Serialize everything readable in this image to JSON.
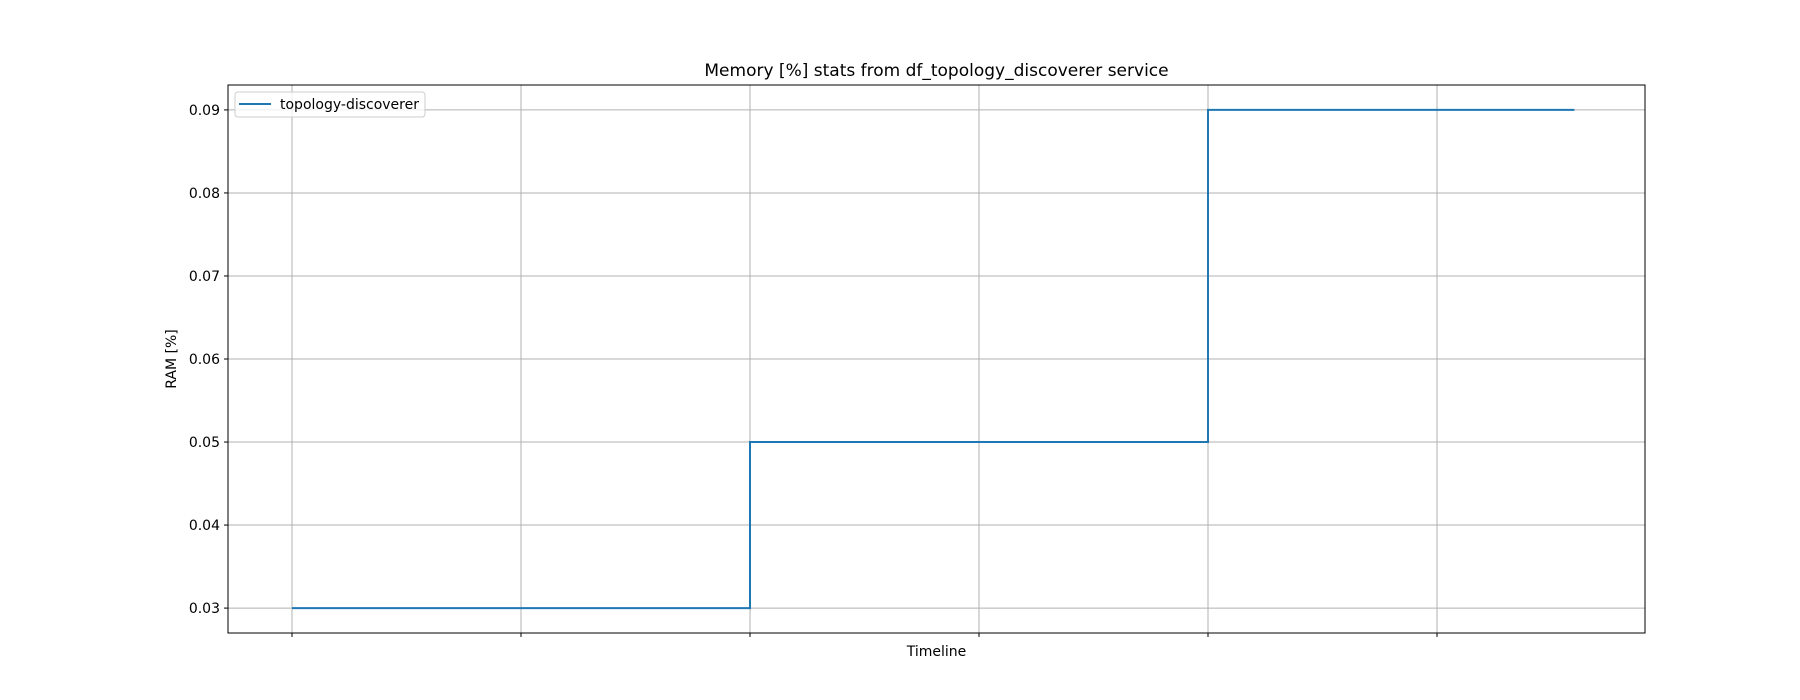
{
  "chart_data": {
    "type": "line",
    "title": "Memory [%] stats from df_topology_discoverer service",
    "xlabel": "Timeline",
    "ylabel": "RAM [%]",
    "x_ticks_labeled": false,
    "x_gridlines": 6,
    "ylim": [
      0.027,
      0.093
    ],
    "yticks": [
      0.03,
      0.04,
      0.05,
      0.06,
      0.07,
      0.08,
      0.09
    ],
    "ytick_labels": [
      "0.03",
      "0.04",
      "0.05",
      "0.06",
      "0.07",
      "0.08",
      "0.09"
    ],
    "grid": true,
    "legend_position": "top-left",
    "series": [
      {
        "name": "topology-discoverer",
        "color": "#1f77b4",
        "drawstyle": "steps-post",
        "x": [
          0,
          2.0,
          2.0,
          2.0,
          4.0,
          4.0,
          5.6
        ],
        "y": [
          0.03,
          0.03,
          0.04,
          0.05,
          0.05,
          0.09,
          0.09
        ]
      }
    ]
  }
}
